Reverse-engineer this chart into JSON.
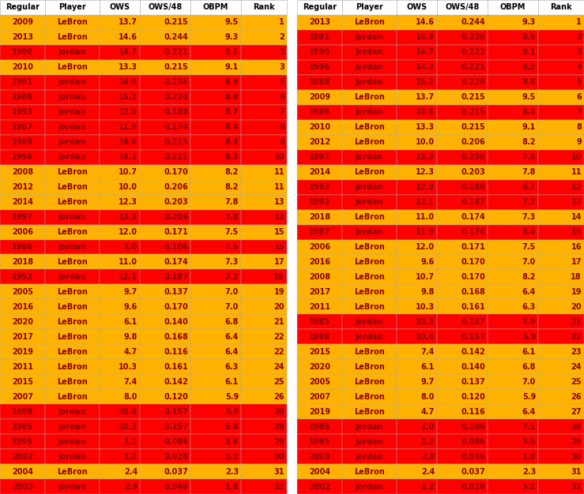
{
  "left_table": [
    {
      "regular": "2009",
      "player": "LeBron",
      "ows": "13.7",
      "ows48": "0.215",
      "obpm": "9.5",
      "rank": "1"
    },
    {
      "regular": "2013",
      "player": "LeBron",
      "ows": "14.6",
      "ows48": "0.244",
      "obpm": "9.3",
      "rank": "2"
    },
    {
      "regular": "1990",
      "player": "Jordan",
      "ows": "14.7",
      "ows48": "0.221",
      "obpm": "9.1",
      "rank": "3"
    },
    {
      "regular": "2010",
      "player": "LeBron",
      "ows": "13.3",
      "ows48": "0.215",
      "obpm": "9.1",
      "rank": "3"
    },
    {
      "regular": "1991",
      "player": "Jordan",
      "ows": "14.9",
      "ows48": "0.236",
      "obpm": "8.9",
      "rank": "5"
    },
    {
      "regular": "1988",
      "player": "Jordan",
      "ows": "15.2",
      "ows48": "0.220",
      "obpm": "8.8",
      "rank": "6"
    },
    {
      "regular": "1993",
      "player": "Jordan",
      "ows": "12.0",
      "ows48": "0.188",
      "obpm": "8.7",
      "rank": "7"
    },
    {
      "regular": "1987",
      "player": "Jordan",
      "ows": "11.9",
      "ows48": "0.174",
      "obpm": "8.4",
      "rank": "8"
    },
    {
      "regular": "1989",
      "player": "Jordan",
      "ows": "14.6",
      "ows48": "0.215",
      "obpm": "8.4",
      "rank": "8"
    },
    {
      "regular": "1996",
      "player": "Jordan",
      "ows": "14.2",
      "ows48": "0.221",
      "obpm": "8.3",
      "rank": "10"
    },
    {
      "regular": "2008",
      "player": "LeBron",
      "ows": "10.7",
      "ows48": "0.170",
      "obpm": "8.2",
      "rank": "11"
    },
    {
      "regular": "2012",
      "player": "LeBron",
      "ows": "10.0",
      "ows48": "0.206",
      "obpm": "8.2",
      "rank": "11"
    },
    {
      "regular": "2014",
      "player": "LeBron",
      "ows": "12.3",
      "ows48": "0.203",
      "obpm": "7.8",
      "rank": "13"
    },
    {
      "regular": "1997",
      "player": "Jordan",
      "ows": "13.3",
      "ows48": "0.206",
      "obpm": "7.8",
      "rank": "13"
    },
    {
      "regular": "2006",
      "player": "LeBron",
      "ows": "12.0",
      "ows48": "0.171",
      "obpm": "7.5",
      "rank": "15"
    },
    {
      "regular": "1986",
      "player": "Jordan",
      "ows": "1.0",
      "ows48": "0.106",
      "obpm": "7.5",
      "rank": "15"
    },
    {
      "regular": "2018",
      "player": "LeBron",
      "ows": "11.0",
      "ows48": "0.174",
      "obpm": "7.3",
      "rank": "17"
    },
    {
      "regular": "1992",
      "player": "Jordan",
      "ows": "12.1",
      "ows48": "0.187",
      "obpm": "7.2",
      "rank": "18"
    },
    {
      "regular": "2005",
      "player": "LeBron",
      "ows": "9.7",
      "ows48": "0.137",
      "obpm": "7.0",
      "rank": "19"
    },
    {
      "regular": "2016",
      "player": "LeBron",
      "ows": "9.6",
      "ows48": "0.170",
      "obpm": "7.0",
      "rank": "20"
    },
    {
      "regular": "2020",
      "player": "LeBron",
      "ows": "6.1",
      "ows48": "0.140",
      "obpm": "6.8",
      "rank": "21"
    },
    {
      "regular": "2017",
      "player": "LeBron",
      "ows": "9.8",
      "ows48": "0.168",
      "obpm": "6.4",
      "rank": "22"
    },
    {
      "regular": "2019",
      "player": "LeBron",
      "ows": "4.7",
      "ows48": "0.116",
      "obpm": "6.4",
      "rank": "22"
    },
    {
      "regular": "2011",
      "player": "LeBron",
      "ows": "10.3",
      "ows48": "0.161",
      "obpm": "6.3",
      "rank": "24"
    },
    {
      "regular": "2015",
      "player": "LeBron",
      "ows": "7.4",
      "ows48": "0.142",
      "obpm": "6.1",
      "rank": "25"
    },
    {
      "regular": "2007",
      "player": "LeBron",
      "ows": "8.0",
      "ows48": "0.120",
      "obpm": "5.9",
      "rank": "26"
    },
    {
      "regular": "1998",
      "player": "Jordan",
      "ows": "10.4",
      "ows48": "0.157",
      "obpm": "5.9",
      "rank": "26"
    },
    {
      "regular": "1985",
      "player": "Jordan",
      "ows": "10.3",
      "ows48": "0.157",
      "obpm": "5.8",
      "rank": "28"
    },
    {
      "regular": "1995",
      "player": "Jordan",
      "ows": "1.2",
      "ows48": "0.086",
      "obpm": "3.6",
      "rank": "29"
    },
    {
      "regular": "2002",
      "player": "Jordan",
      "ows": "1.2",
      "ows48": "0.028",
      "obpm": "3.2",
      "rank": "30"
    },
    {
      "regular": "2004",
      "player": "LeBron",
      "ows": "2.4",
      "ows48": "0.037",
      "obpm": "2.3",
      "rank": "31"
    },
    {
      "regular": "2003",
      "player": "Jordan",
      "ows": "2.9",
      "ows48": "0.046",
      "obpm": "1.8",
      "rank": "32"
    }
  ],
  "right_table": [
    {
      "regular": "2013",
      "player": "LeBron",
      "ows": "14.6",
      "ows48": "0.244",
      "obpm": "9.3",
      "rank": "1"
    },
    {
      "regular": "1991",
      "player": "Jordan",
      "ows": "14.9",
      "ows48": "0.236",
      "obpm": "8.9",
      "rank": "2"
    },
    {
      "regular": "1990",
      "player": "Jordan",
      "ows": "14.7",
      "ows48": "0.221",
      "obpm": "9.1",
      "rank": "3"
    },
    {
      "regular": "1996",
      "player": "Jordan",
      "ows": "14.2",
      "ows48": "0.221",
      "obpm": "8.3",
      "rank": "4"
    },
    {
      "regular": "1988",
      "player": "Jordan",
      "ows": "15.2",
      "ows48": "0.220",
      "obpm": "8.8",
      "rank": "5"
    },
    {
      "regular": "2009",
      "player": "LeBron",
      "ows": "13.7",
      "ows48": "0.215",
      "obpm": "9.5",
      "rank": "6"
    },
    {
      "regular": "1989",
      "player": "Jordan",
      "ows": "14.6",
      "ows48": "0.215",
      "obpm": "8.4",
      "rank": "7"
    },
    {
      "regular": "2010",
      "player": "LeBron",
      "ows": "13.3",
      "ows48": "0.215",
      "obpm": "9.1",
      "rank": "8"
    },
    {
      "regular": "2012",
      "player": "LeBron",
      "ows": "10.0",
      "ows48": "0.206",
      "obpm": "8.2",
      "rank": "9"
    },
    {
      "regular": "1997",
      "player": "Jordan",
      "ows": "13.3",
      "ows48": "0.206",
      "obpm": "7.8",
      "rank": "10"
    },
    {
      "regular": "2014",
      "player": "LeBron",
      "ows": "12.3",
      "ows48": "0.203",
      "obpm": "7.8",
      "rank": "11"
    },
    {
      "regular": "1993",
      "player": "Jordan",
      "ows": "12.0",
      "ows48": "0.188",
      "obpm": "8.7",
      "rank": "12"
    },
    {
      "regular": "1992",
      "player": "Jordan",
      "ows": "12.1",
      "ows48": "0.187",
      "obpm": "7.2",
      "rank": "13"
    },
    {
      "regular": "2018",
      "player": "LeBron",
      "ows": "11.0",
      "ows48": "0.174",
      "obpm": "7.3",
      "rank": "14"
    },
    {
      "regular": "1987",
      "player": "Jordan",
      "ows": "11.9",
      "ows48": "0.174",
      "obpm": "8.4",
      "rank": "15"
    },
    {
      "regular": "2006",
      "player": "LeBron",
      "ows": "12.0",
      "ows48": "0.171",
      "obpm": "7.5",
      "rank": "16"
    },
    {
      "regular": "2016",
      "player": "LeBron",
      "ows": "9.6",
      "ows48": "0.170",
      "obpm": "7.0",
      "rank": "17"
    },
    {
      "regular": "2008",
      "player": "LeBron",
      "ows": "10.7",
      "ows48": "0.170",
      "obpm": "8.2",
      "rank": "18"
    },
    {
      "regular": "2017",
      "player": "LeBron",
      "ows": "9.8",
      "ows48": "0.168",
      "obpm": "6.4",
      "rank": "19"
    },
    {
      "regular": "2011",
      "player": "LeBron",
      "ows": "10.3",
      "ows48": "0.161",
      "obpm": "6.3",
      "rank": "20"
    },
    {
      "regular": "1985",
      "player": "Jordan",
      "ows": "10.3",
      "ows48": "0.157",
      "obpm": "5.8",
      "rank": "21"
    },
    {
      "regular": "1998",
      "player": "Jordan",
      "ows": "10.4",
      "ows48": "0.157",
      "obpm": "5.9",
      "rank": "22"
    },
    {
      "regular": "2015",
      "player": "LeBron",
      "ows": "7.4",
      "ows48": "0.142",
      "obpm": "6.1",
      "rank": "23"
    },
    {
      "regular": "2020",
      "player": "LeBron",
      "ows": "6.1",
      "ows48": "0.140",
      "obpm": "6.8",
      "rank": "24"
    },
    {
      "regular": "2005",
      "player": "LeBron",
      "ows": "9.7",
      "ows48": "0.137",
      "obpm": "7.0",
      "rank": "25"
    },
    {
      "regular": "2007",
      "player": "LeBron",
      "ows": "8.0",
      "ows48": "0.120",
      "obpm": "5.9",
      "rank": "26"
    },
    {
      "regular": "2019",
      "player": "LeBron",
      "ows": "4.7",
      "ows48": "0.116",
      "obpm": "6.4",
      "rank": "27"
    },
    {
      "regular": "1986",
      "player": "Jordan",
      "ows": "1.0",
      "ows48": "0.106",
      "obpm": "7.5",
      "rank": "28"
    },
    {
      "regular": "1995",
      "player": "Jordan",
      "ows": "1.2",
      "ows48": "0.086",
      "obpm": "3.6",
      "rank": "29"
    },
    {
      "regular": "2003",
      "player": "Jordan",
      "ows": "2.9",
      "ows48": "0.046",
      "obpm": "1.8",
      "rank": "30"
    },
    {
      "regular": "2004",
      "player": "LeBron",
      "ows": "2.4",
      "ows48": "0.037",
      "obpm": "2.3",
      "rank": "31"
    },
    {
      "regular": "2002",
      "player": "Jordan",
      "ows": "1.2",
      "ows48": "0.028",
      "obpm": "3.2",
      "rank": "32"
    }
  ],
  "lebron_color": "#FFB300",
  "jordan_color": "#FF0000",
  "text_color": "#8B0000",
  "columns": [
    "Regular",
    "Player",
    "OWS",
    "OWS/48",
    "OBPM",
    "Rank"
  ],
  "font_size": 7.0
}
